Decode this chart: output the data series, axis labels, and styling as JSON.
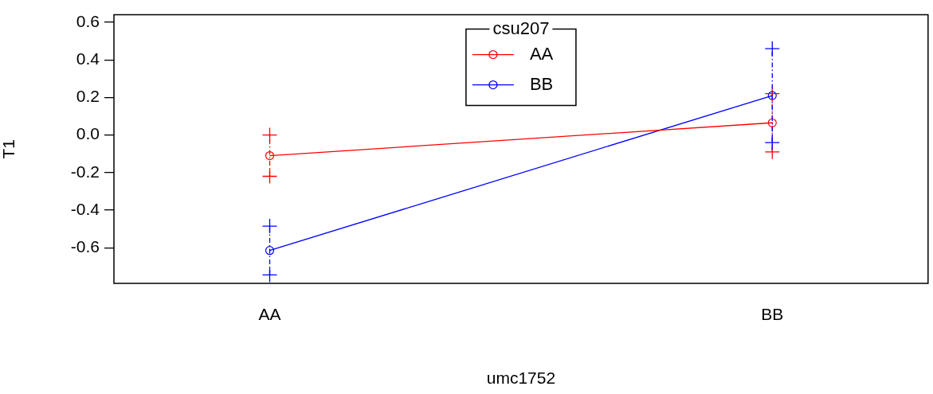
{
  "chart_data": {
    "type": "line",
    "xlabel": "umc1752",
    "ylabel": "T1",
    "legend_title": "csu207",
    "categories": [
      "AA",
      "BB"
    ],
    "series": [
      {
        "name": "AA",
        "color": "#ff0000",
        "values": [
          -0.11,
          0.065
        ],
        "errors": [
          0.11,
          0.155
        ]
      },
      {
        "name": "BB",
        "color": "#0000ff",
        "values": [
          -0.615,
          0.21
        ],
        "errors": [
          0.13,
          0.25
        ]
      }
    ],
    "ylim": [
      -0.79,
      0.64
    ],
    "yticks": [
      -0.6,
      -0.4,
      -0.2,
      {
        "value": 0,
        "label": "0.0"
      },
      0.2,
      0.4,
      0.6
    ],
    "grid": false,
    "legend": "top",
    "marker": "circle",
    "line_style": "solid"
  }
}
